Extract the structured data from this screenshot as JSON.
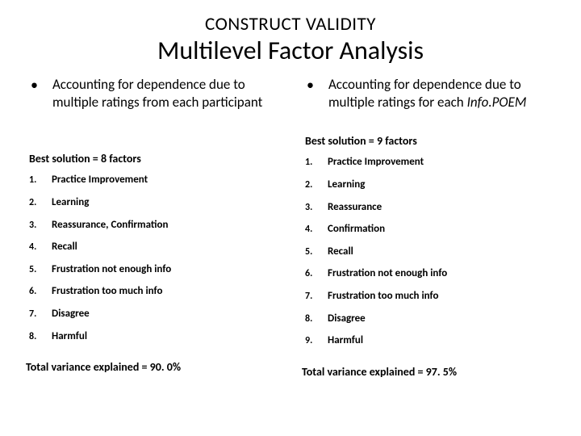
{
  "header": {
    "overline": "CONSTRUCT VALIDITY",
    "title": "Multilevel Factor Analysis"
  },
  "left": {
    "bullet_pre": "Accounting for dependence due to multiple ratings from each participant",
    "bullet_italic": "",
    "best": "Best solution = 8 factors",
    "factors": [
      "Practice Improvement",
      "Learning",
      "Reassurance, Confirmation",
      "Recall",
      "Frustration not enough info",
      "Frustration too much info",
      "Disagree",
      "Harmful"
    ],
    "variance": "Total variance explained = 90. 0%"
  },
  "right": {
    "bullet_pre": "Accounting for dependence due to multiple ratings for each ",
    "bullet_italic": "Info.POEM",
    "best": "Best solution = 9 factors",
    "factors": [
      "Practice Improvement",
      "Learning",
      "Reassurance",
      "Confirmation",
      "Recall",
      "Frustration not enough info",
      "Frustration too much info",
      "Disagree",
      "Harmful"
    ],
    "variance": "Total variance explained = 97. 5%"
  },
  "colors": {
    "background": "#ffffff",
    "text": "#000000"
  },
  "typography": {
    "overline_fontsize": 23,
    "title_fontsize": 32,
    "bullet_fontsize": 17,
    "best_fontsize": 14,
    "list_fontsize": 13,
    "variance_fontsize": 14,
    "font_family": "Calibri"
  }
}
